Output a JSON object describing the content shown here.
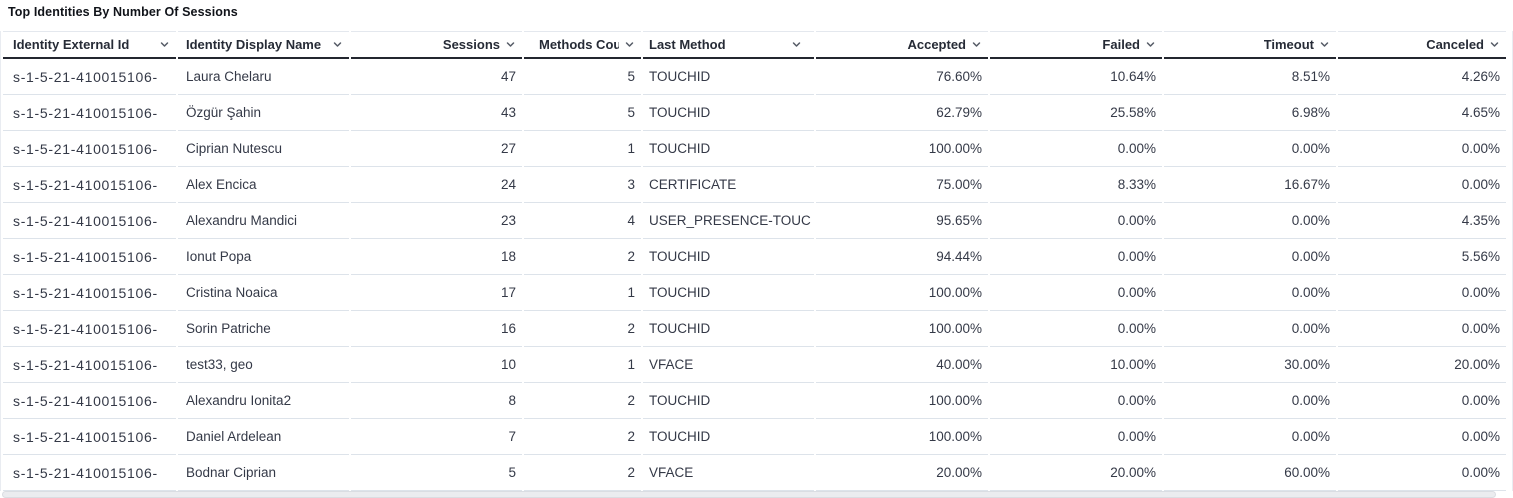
{
  "panel": {
    "title": "Top Identities By Number Of Sessions"
  },
  "icons": {
    "sort_chevron": "chevron-down-icon"
  },
  "colors": {
    "header_underline": "#23262f",
    "row_border": "#dde3ea",
    "header_text": "#262b36",
    "body_text": "#343947",
    "chevron": "#555b66"
  },
  "table": {
    "columns": [
      {
        "key": "external_id",
        "label": "Identity External Id"
      },
      {
        "key": "display_name",
        "label": "Identity Display Name"
      },
      {
        "key": "sessions",
        "label": "Sessions"
      },
      {
        "key": "methods_count",
        "label": "Methods Count"
      },
      {
        "key": "last_method",
        "label": "Last Method"
      },
      {
        "key": "accepted",
        "label": "Accepted"
      },
      {
        "key": "failed",
        "label": "Failed"
      },
      {
        "key": "timeout",
        "label": "Timeout"
      },
      {
        "key": "canceled",
        "label": "Canceled"
      }
    ],
    "rows": [
      {
        "external_id": "s-1-5-21-410015106-",
        "display_name": "Laura Chelaru",
        "sessions": "47",
        "methods_count": "5",
        "last_method": "TOUCHID",
        "accepted": "76.60%",
        "failed": "10.64%",
        "timeout": "8.51%",
        "canceled": "4.26%"
      },
      {
        "external_id": "s-1-5-21-410015106-",
        "display_name": "Özgür Şahin",
        "sessions": "43",
        "methods_count": "5",
        "last_method": "TOUCHID",
        "accepted": "62.79%",
        "failed": "25.58%",
        "timeout": "6.98%",
        "canceled": "4.65%"
      },
      {
        "external_id": "s-1-5-21-410015106-",
        "display_name": "Ciprian Nutescu",
        "sessions": "27",
        "methods_count": "1",
        "last_method": "TOUCHID",
        "accepted": "100.00%",
        "failed": "0.00%",
        "timeout": "0.00%",
        "canceled": "0.00%"
      },
      {
        "external_id": "s-1-5-21-410015106-",
        "display_name": "Alex Encica",
        "sessions": "24",
        "methods_count": "3",
        "last_method": "CERTIFICATE",
        "accepted": "75.00%",
        "failed": "8.33%",
        "timeout": "16.67%",
        "canceled": "0.00%"
      },
      {
        "external_id": "s-1-5-21-410015106-",
        "display_name": "Alexandru Mandici",
        "sessions": "23",
        "methods_count": "4",
        "last_method": "USER_PRESENCE-TOUC",
        "accepted": "95.65%",
        "failed": "0.00%",
        "timeout": "0.00%",
        "canceled": "4.35%"
      },
      {
        "external_id": "s-1-5-21-410015106-",
        "display_name": "Ionut Popa",
        "sessions": "18",
        "methods_count": "2",
        "last_method": "TOUCHID",
        "accepted": "94.44%",
        "failed": "0.00%",
        "timeout": "0.00%",
        "canceled": "5.56%"
      },
      {
        "external_id": "s-1-5-21-410015106-",
        "display_name": "Cristina Noaica",
        "sessions": "17",
        "methods_count": "1",
        "last_method": "TOUCHID",
        "accepted": "100.00%",
        "failed": "0.00%",
        "timeout": "0.00%",
        "canceled": "0.00%"
      },
      {
        "external_id": "s-1-5-21-410015106-",
        "display_name": "Sorin Patriche",
        "sessions": "16",
        "methods_count": "2",
        "last_method": "TOUCHID",
        "accepted": "100.00%",
        "failed": "0.00%",
        "timeout": "0.00%",
        "canceled": "0.00%"
      },
      {
        "external_id": "s-1-5-21-410015106-",
        "display_name": "test33, geo",
        "sessions": "10",
        "methods_count": "1",
        "last_method": "VFACE",
        "accepted": "40.00%",
        "failed": "10.00%",
        "timeout": "30.00%",
        "canceled": "20.00%"
      },
      {
        "external_id": "s-1-5-21-410015106-",
        "display_name": "Alexandru Ionita2",
        "sessions": "8",
        "methods_count": "2",
        "last_method": "TOUCHID",
        "accepted": "100.00%",
        "failed": "0.00%",
        "timeout": "0.00%",
        "canceled": "0.00%"
      },
      {
        "external_id": "s-1-5-21-410015106-",
        "display_name": "Daniel Ardelean",
        "sessions": "7",
        "methods_count": "2",
        "last_method": "TOUCHID",
        "accepted": "100.00%",
        "failed": "0.00%",
        "timeout": "0.00%",
        "canceled": "0.00%"
      },
      {
        "external_id": "s-1-5-21-410015106-",
        "display_name": "Bodnar Ciprian",
        "sessions": "5",
        "methods_count": "2",
        "last_method": "VFACE",
        "accepted": "20.00%",
        "failed": "20.00%",
        "timeout": "60.00%",
        "canceled": "0.00%"
      }
    ]
  }
}
